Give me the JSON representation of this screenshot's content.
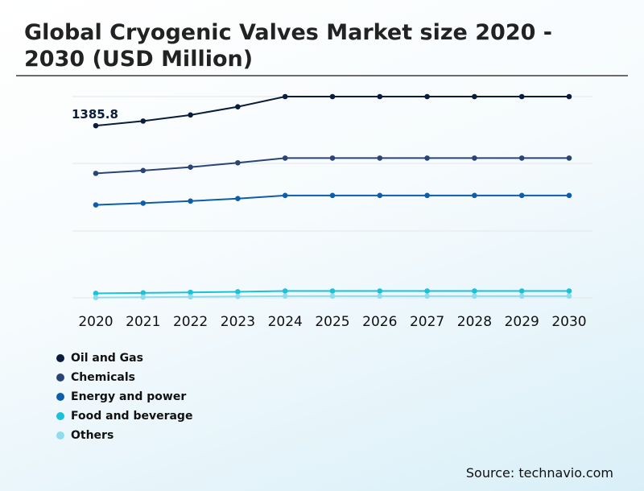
{
  "title": "Global Cryogenic Valves Market size 2020 - 2030 (USD Million)",
  "source": "Source: technavio.com",
  "chart_data": {
    "type": "line",
    "title": "Global Cryogenic Valves Market size 2020 - 2030 (USD Million)",
    "x": [
      "2020",
      "2021",
      "2022",
      "2023",
      "2024",
      "2025",
      "2026",
      "2027",
      "2028",
      "2029",
      "2030"
    ],
    "ylim": [
      0,
      1620
    ],
    "grid": true,
    "legend": "bottom-left",
    "annotations": [
      {
        "series": "Oil and Gas",
        "x": "2020",
        "text": "1385.8"
      }
    ],
    "series": [
      {
        "name": "Oil and Gas",
        "color": "#0b1c3d",
        "values": [
          1385.8,
          1423,
          1472,
          1538,
          1620,
          1620,
          1620,
          1620,
          1620,
          1620,
          1620
        ]
      },
      {
        "name": "Chemicals",
        "color": "#2a4574",
        "values": [
          1002,
          1025,
          1052,
          1087,
          1125,
          1125,
          1125,
          1125,
          1125,
          1125,
          1125
        ]
      },
      {
        "name": "Energy and power",
        "color": "#0d5ea8",
        "values": [
          748,
          762,
          779,
          799,
          824,
          824,
          824,
          824,
          824,
          824,
          824
        ]
      },
      {
        "name": "Food and beverage",
        "color": "#19c2d8",
        "values": [
          36,
          40,
          44,
          49,
          55,
          55,
          55,
          55,
          55,
          55,
          55
        ]
      },
      {
        "name": "Others",
        "color": "#8fdcef",
        "values": [
          2,
          5,
          8,
          11,
          14,
          14,
          14,
          14,
          14,
          14,
          14
        ]
      }
    ]
  }
}
